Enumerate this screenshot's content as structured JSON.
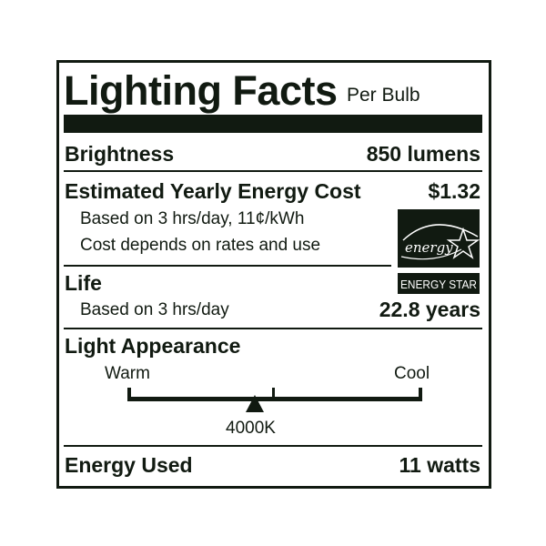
{
  "title": "Lighting Facts",
  "subtitle": "Per Bulb",
  "brightness": {
    "label": "Brightness",
    "value": "850 lumens"
  },
  "energy_cost": {
    "label": "Estimated Yearly Energy Cost",
    "value": "$1.32",
    "note1": "Based on 3 hrs/day, 11¢/kWh",
    "note2": "Cost depends on rates and use"
  },
  "energy_star": {
    "script": "energy",
    "label": "ENERGY STAR"
  },
  "life": {
    "label": "Life",
    "note": "Based on 3 hrs/day",
    "value": "22.8 years"
  },
  "appearance": {
    "label": "Light Appearance",
    "warm": "Warm",
    "cool": "Cool",
    "value": "4000K",
    "marker_fraction": 0.43
  },
  "energy_used": {
    "label": "Energy Used",
    "value": "11 watts"
  },
  "colors": {
    "ink": "#111a11",
    "background": "#ffffff"
  }
}
